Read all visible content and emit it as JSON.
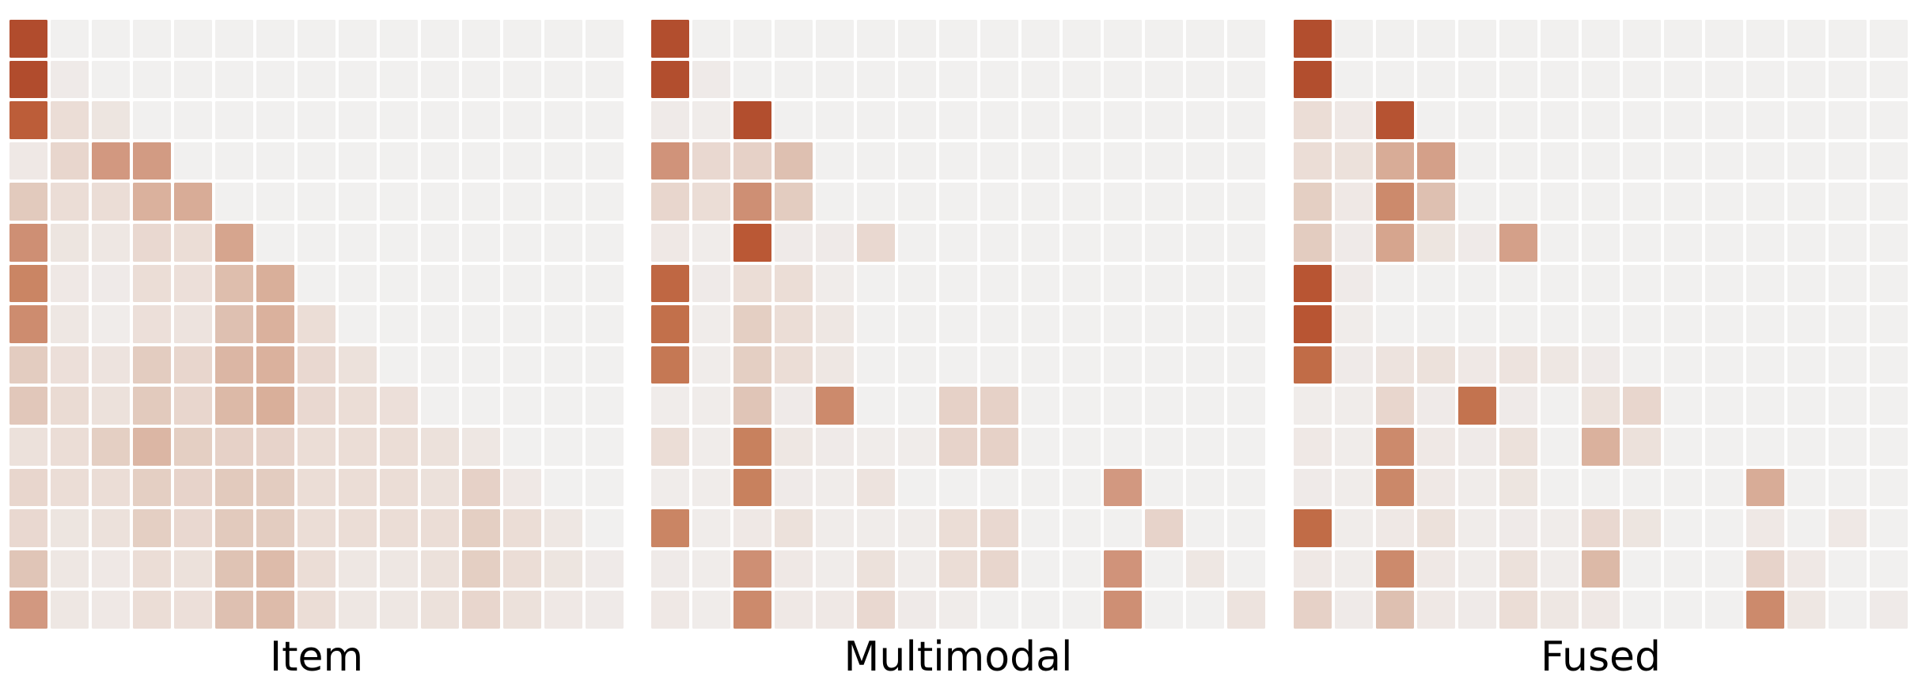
{
  "figure": {
    "background": "#ffffff",
    "text_color": "#000000"
  },
  "chart_data": {
    "type": "heatmap",
    "description": "Three 15x15 co-occurrence style heatmaps side by side, no axis ticks, no colorbar; values estimated on a 0-1 intensity scale from the white-to-brick-red colormap",
    "grid": {
      "rows": 15,
      "cols": 15
    },
    "value_range": [
      0,
      1
    ],
    "legend": "none",
    "axes": "none",
    "cell_gap_color": "#ffffff",
    "colormap": {
      "positions": [
        0,
        0.1,
        0.2,
        0.3,
        0.4,
        0.5,
        0.62,
        0.75,
        0.88,
        1.0
      ],
      "colors": [
        "#f1f0ef",
        "#ebddd6",
        "#e0c5b7",
        "#d8ac97",
        "#d0937a",
        "#c8815e",
        "#c16c47",
        "#ba5835",
        "#b04b2c",
        "#a83f22"
      ]
    },
    "panels": [
      {
        "label": "Item",
        "values": [
          [
            0.87,
            0,
            0,
            0,
            0,
            0,
            0,
            0,
            0,
            0,
            0,
            0,
            0,
            0,
            0
          ],
          [
            0.87,
            0.03,
            0,
            0,
            0,
            0,
            0,
            0,
            0,
            0,
            0,
            0,
            0,
            0,
            0
          ],
          [
            0.72,
            0.1,
            0.06,
            0,
            0,
            0,
            0,
            0,
            0,
            0,
            0,
            0,
            0,
            0,
            0
          ],
          [
            0.04,
            0.13,
            0.38,
            0.37,
            0,
            0,
            0,
            0,
            0,
            0,
            0,
            0,
            0,
            0,
            0
          ],
          [
            0.18,
            0.1,
            0.1,
            0.28,
            0.3,
            0,
            0,
            0,
            0,
            0,
            0,
            0,
            0,
            0,
            0
          ],
          [
            0.42,
            0.06,
            0.05,
            0.12,
            0.1,
            0.33,
            0,
            0,
            0,
            0,
            0,
            0,
            0,
            0,
            0
          ],
          [
            0.48,
            0.04,
            0.03,
            0.1,
            0.09,
            0.23,
            0.29,
            0,
            0,
            0,
            0,
            0,
            0,
            0,
            0
          ],
          [
            0.44,
            0.05,
            0.02,
            0.09,
            0.07,
            0.22,
            0.28,
            0.1,
            0,
            0,
            0,
            0,
            0,
            0,
            0
          ],
          [
            0.17,
            0.09,
            0.07,
            0.17,
            0.13,
            0.26,
            0.28,
            0.12,
            0.08,
            0,
            0,
            0,
            0,
            0,
            0
          ],
          [
            0.19,
            0.11,
            0.08,
            0.18,
            0.13,
            0.25,
            0.29,
            0.12,
            0.1,
            0.09,
            0,
            0,
            0,
            0,
            0
          ],
          [
            0.08,
            0.1,
            0.16,
            0.26,
            0.16,
            0.15,
            0.14,
            0.1,
            0.1,
            0.1,
            0.08,
            0.05,
            0,
            0,
            0
          ],
          [
            0.13,
            0.1,
            0.1,
            0.16,
            0.14,
            0.18,
            0.17,
            0.1,
            0.1,
            0.1,
            0.08,
            0.15,
            0.04,
            0,
            0
          ],
          [
            0.12,
            0.06,
            0.08,
            0.16,
            0.12,
            0.18,
            0.17,
            0.1,
            0.1,
            0.1,
            0.1,
            0.16,
            0.1,
            0.05,
            0
          ],
          [
            0.2,
            0.05,
            0.04,
            0.1,
            0.08,
            0.21,
            0.24,
            0.1,
            0.05,
            0.05,
            0.08,
            0.16,
            0.1,
            0.06,
            0.03
          ],
          [
            0.38,
            0.05,
            0.04,
            0.1,
            0.09,
            0.22,
            0.24,
            0.1,
            0.05,
            0.05,
            0.08,
            0.13,
            0.08,
            0.04,
            0.03
          ]
        ]
      },
      {
        "label": "Multimodal",
        "values": [
          [
            0.85,
            0,
            0,
            0,
            0,
            0,
            0,
            0,
            0,
            0,
            0,
            0,
            0,
            0,
            0
          ],
          [
            0.85,
            0.03,
            0,
            0,
            0,
            0,
            0,
            0,
            0,
            0,
            0,
            0,
            0,
            0,
            0
          ],
          [
            0.03,
            0.02,
            0.85,
            0,
            0,
            0,
            0,
            0,
            0,
            0,
            0,
            0,
            0,
            0,
            0
          ],
          [
            0.4,
            0.12,
            0.15,
            0.22,
            0,
            0,
            0,
            0,
            0,
            0,
            0,
            0,
            0,
            0,
            0
          ],
          [
            0.13,
            0.1,
            0.42,
            0.17,
            0,
            0,
            0,
            0,
            0,
            0,
            0,
            0,
            0,
            0,
            0
          ],
          [
            0.04,
            0.02,
            0.75,
            0.03,
            0.03,
            0.12,
            0,
            0,
            0,
            0,
            0,
            0,
            0,
            0,
            0
          ],
          [
            0.65,
            0.03,
            0.1,
            0.1,
            0.02,
            0,
            0,
            0,
            0,
            0,
            0,
            0,
            0,
            0,
            0
          ],
          [
            0.6,
            0.02,
            0.16,
            0.1,
            0.05,
            0,
            0,
            0,
            0,
            0,
            0,
            0,
            0,
            0,
            0
          ],
          [
            0.55,
            0.02,
            0.16,
            0.1,
            0.05,
            0,
            0,
            0,
            0,
            0,
            0,
            0,
            0,
            0,
            0
          ],
          [
            0.02,
            0.02,
            0.2,
            0.03,
            0.45,
            0,
            0,
            0.15,
            0.15,
            0,
            0,
            0,
            0,
            0,
            0
          ],
          [
            0.1,
            0.02,
            0.5,
            0.05,
            0.03,
            0.02,
            0.02,
            0.14,
            0.15,
            0,
            0,
            0,
            0,
            0,
            0
          ],
          [
            0.02,
            0.02,
            0.5,
            0.03,
            0.02,
            0.07,
            0,
            0,
            0,
            0,
            0,
            0.38,
            0,
            0,
            0
          ],
          [
            0.48,
            0.02,
            0.04,
            0.08,
            0.02,
            0.02,
            0.02,
            0.1,
            0.12,
            0,
            0,
            0,
            0.14,
            0,
            0
          ],
          [
            0.03,
            0.02,
            0.42,
            0.04,
            0.02,
            0.08,
            0.02,
            0.1,
            0.13,
            0,
            0,
            0.4,
            0,
            0.05,
            0
          ],
          [
            0.04,
            0.02,
            0.45,
            0.04,
            0.04,
            0.12,
            0.03,
            0.02,
            0,
            0,
            0,
            0.42,
            0,
            0,
            0.07
          ]
        ]
      },
      {
        "label": "Fused",
        "values": [
          [
            0.85,
            0,
            0,
            0,
            0,
            0,
            0,
            0,
            0,
            0,
            0,
            0,
            0,
            0,
            0
          ],
          [
            0.85,
            0,
            0,
            0,
            0,
            0,
            0,
            0,
            0,
            0,
            0,
            0,
            0,
            0,
            0
          ],
          [
            0.1,
            0.04,
            0.8,
            0,
            0,
            0,
            0,
            0,
            0,
            0,
            0,
            0,
            0,
            0,
            0
          ],
          [
            0.1,
            0.08,
            0.3,
            0.35,
            0,
            0,
            0,
            0,
            0,
            0,
            0,
            0,
            0,
            0,
            0
          ],
          [
            0.16,
            0.04,
            0.45,
            0.22,
            0,
            0,
            0,
            0,
            0,
            0,
            0,
            0,
            0,
            0,
            0
          ],
          [
            0.17,
            0.03,
            0.33,
            0.06,
            0.03,
            0.35,
            0,
            0,
            0,
            0,
            0,
            0,
            0,
            0,
            0
          ],
          [
            0.78,
            0.03,
            0,
            0,
            0,
            0,
            0,
            0,
            0,
            0,
            0,
            0,
            0,
            0,
            0
          ],
          [
            0.78,
            0.02,
            0,
            0,
            0,
            0,
            0,
            0,
            0,
            0,
            0,
            0,
            0,
            0,
            0
          ],
          [
            0.62,
            0.03,
            0.07,
            0.08,
            0.04,
            0.07,
            0.05,
            0.03,
            0,
            0,
            0,
            0,
            0,
            0,
            0
          ],
          [
            0.02,
            0.02,
            0.13,
            0.03,
            0.58,
            0.03,
            0,
            0.08,
            0.13,
            0,
            0,
            0,
            0,
            0,
            0
          ],
          [
            0.04,
            0.02,
            0.45,
            0.04,
            0.03,
            0.08,
            0,
            0.28,
            0.08,
            0,
            0,
            0,
            0,
            0,
            0
          ],
          [
            0.03,
            0.02,
            0.46,
            0.04,
            0.02,
            0.06,
            0,
            0,
            0,
            0,
            0,
            0.3,
            0,
            0,
            0
          ],
          [
            0.62,
            0.02,
            0.04,
            0.08,
            0.02,
            0.03,
            0.02,
            0.12,
            0.06,
            0,
            0,
            0.04,
            0,
            0.04,
            0
          ],
          [
            0.04,
            0.02,
            0.45,
            0.04,
            0.02,
            0.08,
            0.02,
            0.25,
            0,
            0,
            0,
            0.14,
            0.04,
            0,
            0
          ],
          [
            0.15,
            0.03,
            0.22,
            0.04,
            0.03,
            0.1,
            0.05,
            0.04,
            0,
            0,
            0,
            0.45,
            0.05,
            0,
            0.03
          ]
        ]
      }
    ]
  }
}
